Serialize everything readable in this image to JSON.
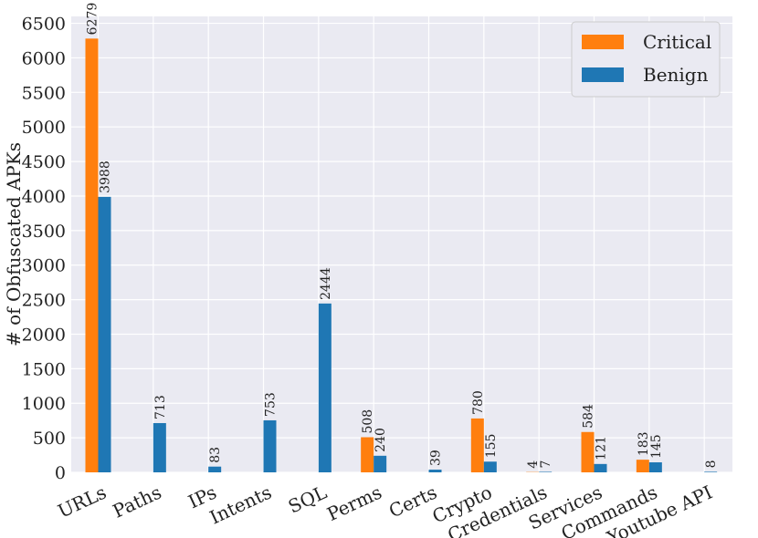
{
  "chart_data": {
    "type": "bar",
    "ylabel": "# of Obfuscated APKs",
    "xlabel": "",
    "title": "",
    "ylim": [
      0,
      6600
    ],
    "yticks": [
      0,
      500,
      1000,
      1500,
      2000,
      2500,
      3000,
      3500,
      4000,
      4500,
      5000,
      5500,
      6000,
      6500
    ],
    "grid": true,
    "legend_position": "top-right",
    "categories": [
      "URLs",
      "Paths",
      "IPs",
      "Intents",
      "SQL",
      "Perms",
      "Certs",
      "Crypto",
      "Credentials",
      "Services",
      "Commands",
      "Youtube API"
    ],
    "series": [
      {
        "name": "Critical",
        "color": "#ff7f0e",
        "values": [
          6279,
          0,
          0,
          0,
          0,
          508,
          0,
          780,
          4,
          584,
          183,
          0
        ],
        "labels": [
          "6279",
          "",
          "",
          "",
          "",
          "508",
          "",
          "780",
          "4",
          "584",
          "183",
          ""
        ]
      },
      {
        "name": "Benign",
        "color": "#1f77b4",
        "values": [
          3988,
          713,
          83,
          753,
          2444,
          240,
          39,
          155,
          7,
          121,
          145,
          8
        ],
        "labels": [
          "3988",
          "713",
          "83",
          "753",
          "2444",
          "240",
          "39",
          "155",
          "7",
          "121",
          "145",
          "8"
        ]
      }
    ]
  }
}
